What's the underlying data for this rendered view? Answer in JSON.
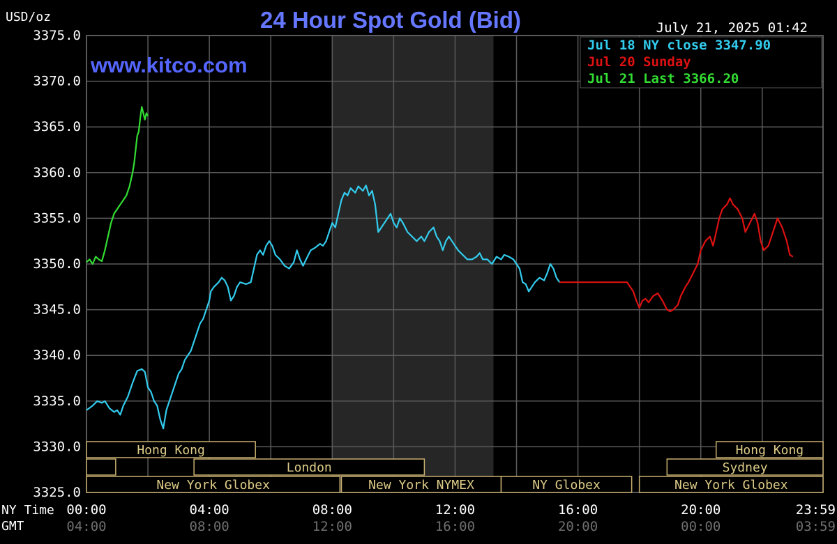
{
  "chart_data": {
    "type": "line",
    "title": "24 Hour Spot Gold (Bid)",
    "unit_label": "USD/oz",
    "watermark": "www.kitco.com",
    "timestamp": "July 21, 2025 01:42",
    "ylim": [
      3325.0,
      3375.0
    ],
    "y_ticks": [
      "3375.0",
      "3370.0",
      "3365.0",
      "3360.0",
      "3355.0",
      "3350.0",
      "3345.0",
      "3340.0",
      "3335.0",
      "3330.0",
      "3325.0"
    ],
    "x_axis": {
      "ny_label": "NY Time",
      "gmt_label": "GMT",
      "ny_ticks": [
        "00:00",
        "04:00",
        "08:00",
        "12:00",
        "16:00",
        "20:00",
        "23:59"
      ],
      "gmt_ticks": [
        "04:00",
        "08:00",
        "12:00",
        "16:00",
        "20:00",
        "00:00",
        "03:59"
      ]
    },
    "shaded_region_hours": [
      8.0,
      13.25
    ],
    "grid": true,
    "legend": {
      "placement": "top-right",
      "items": [
        {
          "text": "Jul 18 NY close 3347.90",
          "color": "#33ccee"
        },
        {
          "text": "Jul 20 Sunday",
          "color": "#dd1111"
        },
        {
          "text": "Jul 21 Last 3366.20",
          "color": "#33dd33"
        }
      ]
    },
    "sessions": [
      {
        "label": "Hong Kong",
        "start": 0.0,
        "end": 5.5
      },
      {
        "label": "",
        "start": 0.0,
        "end": 0.95
      },
      {
        "label": "London",
        "start": 3.5,
        "end": 11.0
      },
      {
        "label": "New York Globex",
        "start": 0.0,
        "end": 8.25
      },
      {
        "label": "New York NYMEX",
        "start": 8.3,
        "end": 13.5
      },
      {
        "label": "NY Globex",
        "start": 13.5,
        "end": 17.75
      },
      {
        "label": "Hong Kong",
        "start": 20.5,
        "end": 23.98
      },
      {
        "label": "Sydney",
        "start": 18.9,
        "end": 23.98
      },
      {
        "label": "New York Globex",
        "start": 18.0,
        "end": 23.98
      }
    ],
    "series": [
      {
        "name": "Jul 18 NY close 3347.90",
        "color": "#33ccee",
        "points": [
          [
            0.0,
            3334.0
          ],
          [
            0.2,
            3334.5
          ],
          [
            0.35,
            3335.0
          ],
          [
            0.5,
            3334.8
          ],
          [
            0.6,
            3335.0
          ],
          [
            0.75,
            3334.2
          ],
          [
            0.9,
            3333.8
          ],
          [
            1.0,
            3334.0
          ],
          [
            1.1,
            3333.5
          ],
          [
            1.2,
            3334.5
          ],
          [
            1.35,
            3335.5
          ],
          [
            1.5,
            3337.0
          ],
          [
            1.65,
            3338.3
          ],
          [
            1.8,
            3338.5
          ],
          [
            1.9,
            3338.2
          ],
          [
            2.0,
            3336.5
          ],
          [
            2.1,
            3336.0
          ],
          [
            2.2,
            3335.0
          ],
          [
            2.3,
            3334.5
          ],
          [
            2.4,
            3333.0
          ],
          [
            2.5,
            3332.0
          ],
          [
            2.6,
            3334.0
          ],
          [
            2.75,
            3335.5
          ],
          [
            2.9,
            3337.0
          ],
          [
            3.0,
            3338.0
          ],
          [
            3.1,
            3338.5
          ],
          [
            3.2,
            3339.5
          ],
          [
            3.3,
            3340.0
          ],
          [
            3.4,
            3340.5
          ],
          [
            3.5,
            3341.5
          ],
          [
            3.6,
            3342.5
          ],
          [
            3.7,
            3343.5
          ],
          [
            3.8,
            3344.0
          ],
          [
            3.9,
            3345.0
          ],
          [
            4.0,
            3346.0
          ],
          [
            4.05,
            3347.0
          ],
          [
            4.15,
            3347.5
          ],
          [
            4.3,
            3348.0
          ],
          [
            4.4,
            3348.5
          ],
          [
            4.5,
            3348.2
          ],
          [
            4.6,
            3347.5
          ],
          [
            4.7,
            3346.0
          ],
          [
            4.8,
            3346.5
          ],
          [
            4.9,
            3347.5
          ],
          [
            5.0,
            3348.0
          ],
          [
            5.2,
            3347.8
          ],
          [
            5.35,
            3348.0
          ],
          [
            5.45,
            3349.5
          ],
          [
            5.55,
            3351.0
          ],
          [
            5.65,
            3351.5
          ],
          [
            5.75,
            3351.0
          ],
          [
            5.85,
            3352.0
          ],
          [
            5.95,
            3352.5
          ],
          [
            6.05,
            3352.0
          ],
          [
            6.15,
            3351.0
          ],
          [
            6.3,
            3350.5
          ],
          [
            6.45,
            3349.8
          ],
          [
            6.6,
            3349.5
          ],
          [
            6.75,
            3350.2
          ],
          [
            6.85,
            3351.5
          ],
          [
            6.95,
            3350.5
          ],
          [
            7.05,
            3349.8
          ],
          [
            7.15,
            3350.5
          ],
          [
            7.3,
            3351.5
          ],
          [
            7.45,
            3351.8
          ],
          [
            7.6,
            3352.2
          ],
          [
            7.7,
            3352.0
          ],
          [
            7.8,
            3352.5
          ],
          [
            7.9,
            3353.5
          ],
          [
            8.0,
            3354.5
          ],
          [
            8.1,
            3354.0
          ],
          [
            8.2,
            3355.5
          ],
          [
            8.3,
            3357.0
          ],
          [
            8.4,
            3357.8
          ],
          [
            8.5,
            3357.5
          ],
          [
            8.6,
            3358.3
          ],
          [
            8.75,
            3357.8
          ],
          [
            8.85,
            3358.5
          ],
          [
            9.0,
            3358.0
          ],
          [
            9.1,
            3358.6
          ],
          [
            9.2,
            3357.5
          ],
          [
            9.3,
            3358.0
          ],
          [
            9.4,
            3356.5
          ],
          [
            9.45,
            3355.0
          ],
          [
            9.5,
            3353.5
          ],
          [
            9.6,
            3354.0
          ],
          [
            9.7,
            3354.5
          ],
          [
            9.8,
            3355.0
          ],
          [
            9.9,
            3355.5
          ],
          [
            10.0,
            3354.5
          ],
          [
            10.1,
            3354.0
          ],
          [
            10.2,
            3355.0
          ],
          [
            10.3,
            3354.5
          ],
          [
            10.45,
            3353.5
          ],
          [
            10.6,
            3353.0
          ],
          [
            10.75,
            3352.5
          ],
          [
            10.9,
            3353.0
          ],
          [
            11.0,
            3352.5
          ],
          [
            11.15,
            3353.5
          ],
          [
            11.3,
            3354.0
          ],
          [
            11.4,
            3353.0
          ],
          [
            11.5,
            3352.5
          ],
          [
            11.6,
            3351.5
          ],
          [
            11.7,
            3352.5
          ],
          [
            11.8,
            3353.0
          ],
          [
            11.9,
            3352.5
          ],
          [
            12.0,
            3352.0
          ],
          [
            12.1,
            3351.5
          ],
          [
            12.25,
            3351.0
          ],
          [
            12.4,
            3350.5
          ],
          [
            12.55,
            3350.5
          ],
          [
            12.7,
            3350.8
          ],
          [
            12.8,
            3351.2
          ],
          [
            12.9,
            3350.5
          ],
          [
            13.05,
            3350.5
          ],
          [
            13.2,
            3350.0
          ],
          [
            13.35,
            3350.8
          ],
          [
            13.5,
            3350.5
          ],
          [
            13.6,
            3351.0
          ],
          [
            13.75,
            3350.8
          ],
          [
            13.9,
            3350.5
          ],
          [
            14.0,
            3350.0
          ],
          [
            14.1,
            3349.5
          ],
          [
            14.2,
            3348.0
          ],
          [
            14.3,
            3347.8
          ],
          [
            14.4,
            3347.0
          ],
          [
            14.5,
            3347.5
          ],
          [
            14.6,
            3348.0
          ],
          [
            14.75,
            3348.5
          ],
          [
            14.9,
            3348.2
          ],
          [
            15.0,
            3349.0
          ],
          [
            15.1,
            3350.0
          ],
          [
            15.2,
            3349.5
          ],
          [
            15.3,
            3348.5
          ],
          [
            15.4,
            3348.0
          ]
        ]
      },
      {
        "name": "Jul 20 Sunday",
        "color": "#dd1111",
        "points": [
          [
            15.4,
            3348.0
          ],
          [
            17.6,
            3348.0
          ],
          [
            17.8,
            3347.0
          ],
          [
            17.9,
            3346.0
          ],
          [
            18.0,
            3345.2
          ],
          [
            18.1,
            3346.0
          ],
          [
            18.2,
            3346.2
          ],
          [
            18.3,
            3345.8
          ],
          [
            18.45,
            3346.5
          ],
          [
            18.6,
            3346.8
          ],
          [
            18.75,
            3346.0
          ],
          [
            18.9,
            3345.0
          ],
          [
            19.0,
            3344.8
          ],
          [
            19.1,
            3345.0
          ],
          [
            19.25,
            3345.5
          ],
          [
            19.35,
            3346.5
          ],
          [
            19.5,
            3347.5
          ],
          [
            19.6,
            3348.0
          ],
          [
            19.75,
            3349.0
          ],
          [
            19.9,
            3350.0
          ],
          [
            20.0,
            3351.5
          ],
          [
            20.15,
            3352.5
          ],
          [
            20.3,
            3353.0
          ],
          [
            20.4,
            3352.0
          ],
          [
            20.5,
            3353.5
          ],
          [
            20.6,
            3355.0
          ],
          [
            20.7,
            3356.0
          ],
          [
            20.85,
            3356.5
          ],
          [
            20.95,
            3357.2
          ],
          [
            21.05,
            3356.5
          ],
          [
            21.2,
            3356.0
          ],
          [
            21.35,
            3355.0
          ],
          [
            21.45,
            3353.5
          ],
          [
            21.6,
            3354.5
          ],
          [
            21.75,
            3355.5
          ],
          [
            21.85,
            3354.5
          ],
          [
            21.95,
            3352.5
          ],
          [
            22.05,
            3351.5
          ],
          [
            22.2,
            3352.0
          ],
          [
            22.35,
            3353.5
          ],
          [
            22.5,
            3355.0
          ],
          [
            22.65,
            3354.0
          ],
          [
            22.8,
            3352.5
          ],
          [
            22.9,
            3351.0
          ],
          [
            23.0,
            3350.8
          ]
        ]
      },
      {
        "name": "Jul 21 Last 3366.20",
        "color": "#33dd33",
        "points": [
          [
            0.0,
            3350.2
          ],
          [
            0.1,
            3350.5
          ],
          [
            0.2,
            3350.0
          ],
          [
            0.3,
            3350.8
          ],
          [
            0.4,
            3350.5
          ],
          [
            0.5,
            3350.3
          ],
          [
            0.6,
            3351.5
          ],
          [
            0.7,
            3353.0
          ],
          [
            0.8,
            3354.5
          ],
          [
            0.9,
            3355.5
          ],
          [
            1.0,
            3356.0
          ],
          [
            1.1,
            3356.5
          ],
          [
            1.2,
            3357.0
          ],
          [
            1.3,
            3357.5
          ],
          [
            1.4,
            3358.5
          ],
          [
            1.5,
            3360.0
          ],
          [
            1.55,
            3361.0
          ],
          [
            1.6,
            3362.5
          ],
          [
            1.65,
            3364.0
          ],
          [
            1.7,
            3364.5
          ],
          [
            1.75,
            3366.0
          ],
          [
            1.8,
            3367.2
          ],
          [
            1.85,
            3366.5
          ],
          [
            1.9,
            3365.8
          ],
          [
            1.95,
            3366.5
          ],
          [
            2.0,
            3366.2
          ]
        ]
      }
    ]
  }
}
